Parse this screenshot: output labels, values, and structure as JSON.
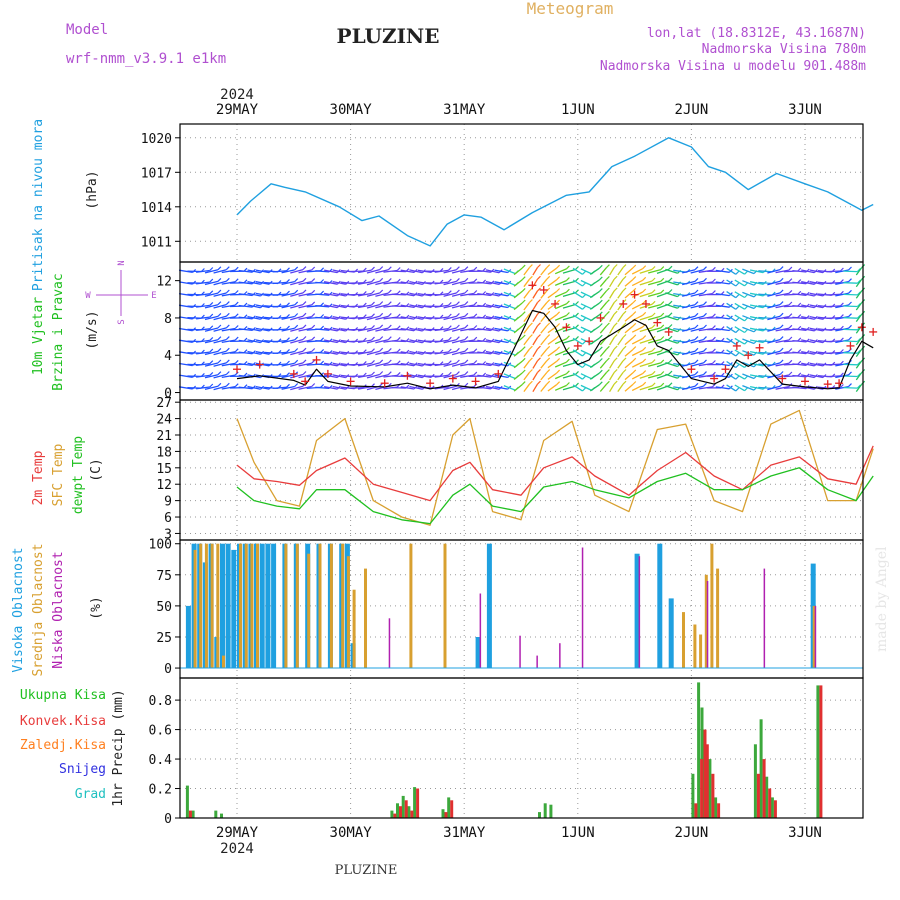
{
  "header": {
    "model_label": "Model",
    "model_name": "wrf-nmm_v3.9.1  e1km",
    "station": "PLUZINE",
    "meteogram": "Meteogram",
    "lonlat": "lon,lat (18.8312E, 43.1687N)",
    "elevation": "Nadmorska Visina 780m",
    "model_elevation": "Nadmorska Visina u modelu 901.488m",
    "footer_station": "PLUZINE",
    "watermark": "made by Angel",
    "year": "2024"
  },
  "dates": [
    "29MAY",
    "30MAY",
    "31MAY",
    "1JUN",
    "2JUN",
    "3JUN"
  ],
  "colors": {
    "pressure": "#1fa0e0",
    "wind_speed": "#000000",
    "gust": "#e02020",
    "temp2m": "#e83c3c",
    "sfc_temp": "#d8a030",
    "dewpoint": "#20c020",
    "high_cloud": "#1fa0e0",
    "mid_cloud": "#d8a030",
    "low_cloud": "#b020b0",
    "total_precip": "#3ca83c",
    "conv_precip": "#e03030",
    "frozen_precip": "#ff8020",
    "snow": "#3030e0",
    "graupel": "#20c0c0",
    "title": "#222222",
    "info": "#b050d0",
    "meteogram": "#e0b060"
  },
  "panels": {
    "pressure": {
      "label": "Pritisak na nivou mora",
      "unit": "(hPa)",
      "ticks": [
        "1011",
        "1014",
        "1017",
        "1020"
      ]
    },
    "wind": {
      "label1": "10m Vjetar",
      "label2": "Brzina i Pravac",
      "unit": "(m/s)",
      "ticks": [
        "0",
        "4",
        "8",
        "12"
      ],
      "compass": {
        "n": "N",
        "s": "S",
        "w": "W",
        "e": "E"
      }
    },
    "temp": {
      "label1": "2m Temp",
      "label2": "SFC Temp",
      "label3": "dewpt Temp",
      "unit": "(C)",
      "ticks": [
        "3",
        "6",
        "9",
        "12",
        "15",
        "18",
        "21",
        "24",
        "27"
      ]
    },
    "cloud": {
      "label1": "Visoka Oblacnost",
      "label2": "Srednja Oblacnost",
      "label3": "Niska Oblacnost",
      "unit": "(%)",
      "ticks": [
        "0",
        "25",
        "50",
        "75",
        "100"
      ]
    },
    "precip": {
      "labels": [
        "Ukupna Kisa",
        "Konvek.Kisa",
        "Zaledj.Kisa",
        "Snijeg",
        "Grad"
      ],
      "unit": "1hr Precip (mm)",
      "ticks": [
        "0",
        "0.2",
        "0.4",
        "0.6",
        "0.8"
      ]
    }
  },
  "chart_data": [
    {
      "type": "line",
      "title": "Pritisak na nivou mora",
      "ylabel": "(hPa)",
      "ylim": [
        1009.2,
        1021.2
      ],
      "x_days": [
        0,
        0.12,
        0.3,
        0.42,
        0.6,
        0.9,
        1.1,
        1.25,
        1.5,
        1.7,
        1.85,
        2.0,
        2.15,
        2.35,
        2.6,
        2.9,
        3.1,
        3.3,
        3.5,
        3.8,
        4.0,
        4.15,
        4.3,
        4.5,
        4.75,
        5.0,
        5.2,
        5.5,
        5.6
      ],
      "series": [
        {
          "name": "",
          "values": [
            1013.3,
            1014.5,
            1016.0,
            1015.7,
            1015.3,
            1014.0,
            1012.8,
            1013.2,
            1011.5,
            1010.6,
            1012.5,
            1013.3,
            1013.1,
            1012.0,
            1013.5,
            1015.0,
            1015.3,
            1017.5,
            1018.4,
            1020.0,
            1019.2,
            1017.5,
            1017.0,
            1015.5,
            1016.9,
            1016.0,
            1015.3,
            1013.7,
            1014.2
          ]
        }
      ]
    },
    {
      "type": "line",
      "title": "10m Vjetar Brzina i Pravac",
      "ylabel": "(m/s)",
      "ylim": [
        0,
        14
      ],
      "x_days": [
        0,
        0.2,
        0.5,
        0.6,
        0.7,
        0.8,
        1.0,
        1.3,
        1.5,
        1.7,
        1.9,
        2.1,
        2.3,
        2.6,
        2.7,
        2.8,
        2.9,
        3.0,
        3.1,
        3.2,
        3.4,
        3.5,
        3.6,
        3.7,
        3.8,
        4.0,
        4.2,
        4.3,
        4.4,
        4.5,
        4.6,
        4.8,
        5.0,
        5.2,
        5.3,
        5.4,
        5.5,
        5.6
      ],
      "series": [
        {
          "name": "",
          "values": [
            1.5,
            1.8,
            1.3,
            0.8,
            2.5,
            1.2,
            0.7,
            0.6,
            1.0,
            0.4,
            0.8,
            0.5,
            1.2,
            8.8,
            8.5,
            7.0,
            4.5,
            3.0,
            3.5,
            5.5,
            7.0,
            7.8,
            7.2,
            5.0,
            4.5,
            1.5,
            0.9,
            1.5,
            3.5,
            2.8,
            3.5,
            0.9,
            0.6,
            0.4,
            0.5,
            3.5,
            5.5,
            4.8
          ]
        },
        {
          "name": "",
          "values": [
            2.5,
            3.0,
            2.0,
            1.2,
            3.5,
            2.0,
            1.2,
            1.0,
            1.8,
            1.0,
            1.5,
            1.2,
            2.0,
            11.5,
            11.0,
            9.5,
            7.0,
            5.0,
            5.5,
            8.0,
            9.5,
            10.5,
            9.5,
            7.5,
            6.5,
            2.5,
            1.5,
            2.5,
            5.0,
            4.0,
            4.8,
            1.5,
            1.2,
            0.9,
            1.0,
            5.0,
            7.0,
            6.5
          ]
        }
      ]
    },
    {
      "type": "line",
      "title": "2m Temp / SFC Temp / dewpt Temp",
      "ylabel": "(C)",
      "ylim": [
        3,
        27
      ],
      "x_days": [
        0,
        0.15,
        0.35,
        0.55,
        0.7,
        0.95,
        1.2,
        1.45,
        1.7,
        1.9,
        2.05,
        2.25,
        2.5,
        2.7,
        2.95,
        3.15,
        3.45,
        3.7,
        3.95,
        4.2,
        4.45,
        4.7,
        4.95,
        5.2,
        5.45,
        5.6
      ],
      "series": [
        {
          "name": "2m Temp",
          "values": [
            15.5,
            13.0,
            12.5,
            11.8,
            14.5,
            16.8,
            12.0,
            10.5,
            9.0,
            14.5,
            16.0,
            11.0,
            10.0,
            15.0,
            17.0,
            13.5,
            10.0,
            14.5,
            17.8,
            13.5,
            11.0,
            15.5,
            17.0,
            13.0,
            12.0,
            19.0
          ]
        },
        {
          "name": "SFC Temp",
          "values": [
            24.0,
            16.0,
            9.0,
            8.0,
            20.0,
            24.0,
            9.0,
            6.0,
            4.5,
            21.0,
            24.0,
            7.0,
            5.5,
            20.0,
            23.5,
            10.0,
            7.0,
            22.0,
            23.0,
            9.0,
            7.0,
            23.0,
            25.5,
            9.0,
            9.0,
            18.5
          ]
        },
        {
          "name": "dewpt Temp",
          "values": [
            11.5,
            9.0,
            8.0,
            7.5,
            11.0,
            11.0,
            7.0,
            5.5,
            4.8,
            10.0,
            12.0,
            8.0,
            7.0,
            11.5,
            12.5,
            11.0,
            9.5,
            12.5,
            14.0,
            11.0,
            11.0,
            13.5,
            15.0,
            11.0,
            9.0,
            13.5
          ]
        }
      ]
    },
    {
      "type": "bar",
      "title": "Oblacnost",
      "ylabel": "(%)",
      "ylim": [
        0,
        100
      ],
      "x_days": [
        0.05,
        0.1,
        0.15,
        0.2,
        0.25,
        0.3,
        0.35,
        0.4,
        0.45,
        0.5,
        0.55,
        0.6,
        0.65,
        0.7,
        0.75,
        0.8,
        0.9,
        1.0,
        1.1,
        1.2,
        1.3,
        1.4,
        1.45,
        1.5,
        1.6,
        1.8,
        2.0,
        2.3,
        2.5,
        2.6,
        2.7,
        2.95,
        3.1,
        3.3,
        3.5,
        3.9,
        4.0,
        4.2,
        4.3,
        4.4,
        4.5,
        4.55,
        4.6,
        4.65,
        4.7,
        4.95,
        5.0,
        5.1,
        5.55
      ],
      "series": [
        {
          "name": "Visoka Oblacnost",
          "values": [
            50,
            100,
            100,
            85,
            100,
            25,
            100,
            100,
            95,
            100,
            100,
            100,
            100,
            100,
            100,
            100,
            100,
            100,
            100,
            100,
            100,
            100,
            100,
            20,
            0,
            0,
            0,
            0,
            0,
            25,
            100,
            0,
            0,
            0,
            0,
            0,
            92,
            100,
            56,
            0,
            0,
            0,
            0,
            0,
            0,
            0,
            0,
            0,
            84
          ]
        },
        {
          "name": "Srednja Oblacnost",
          "values": [
            0,
            95,
            100,
            100,
            100,
            100,
            10,
            0,
            0,
            100,
            100,
            100,
            100,
            0,
            0,
            0,
            100,
            100,
            92,
            100,
            100,
            100,
            90,
            63,
            80,
            0,
            100,
            100,
            0,
            0,
            0,
            0,
            0,
            0,
            0,
            0,
            0,
            0,
            0,
            45,
            35,
            27,
            75,
            100,
            80,
            0,
            0,
            0,
            50
          ]
        },
        {
          "name": "Niska Oblacnost",
          "values": [
            0,
            0,
            0,
            0,
            0,
            0,
            0,
            0,
            0,
            0,
            0,
            0,
            0,
            0,
            0,
            0,
            0,
            0,
            0,
            0,
            0,
            0,
            0,
            0,
            0,
            40,
            0,
            0,
            0,
            60,
            0,
            26,
            10,
            20,
            97,
            0,
            90,
            0,
            0,
            0,
            0,
            0,
            70,
            0,
            0,
            0,
            0,
            80,
            50
          ]
        }
      ]
    },
    {
      "type": "bar",
      "title": "1hr Precip",
      "ylabel": "1hr Precip (mm)",
      "ylim": [
        0,
        0.95
      ],
      "x_days": [
        0.05,
        0.1,
        0.3,
        0.35,
        1.85,
        1.9,
        1.95,
        2.0,
        2.05,
        2.3,
        2.35,
        3.15,
        3.2,
        3.25,
        4.5,
        4.55,
        4.58,
        4.6,
        4.65,
        4.7,
        5.05,
        5.1,
        5.15,
        5.2,
        5.6
      ],
      "series": [
        {
          "name": "Ukupna Kisa",
          "values": [
            0.22,
            0.05,
            0.05,
            0.03,
            0.05,
            0.1,
            0.15,
            0.08,
            0.21,
            0.06,
            0.14,
            0.04,
            0.1,
            0.09,
            0.3,
            0.92,
            0.75,
            0.6,
            0.4,
            0.14,
            0.5,
            0.67,
            0.28,
            0.14,
            0.9
          ]
        },
        {
          "name": "Konvek.Kisa",
          "values": [
            0.05,
            0.0,
            0.0,
            0.0,
            0.03,
            0.08,
            0.12,
            0.05,
            0.2,
            0.04,
            0.12,
            0.0,
            0.0,
            0.0,
            0.1,
            0.4,
            0.6,
            0.5,
            0.3,
            0.1,
            0.3,
            0.4,
            0.2,
            0.12,
            0.9
          ]
        }
      ]
    }
  ]
}
